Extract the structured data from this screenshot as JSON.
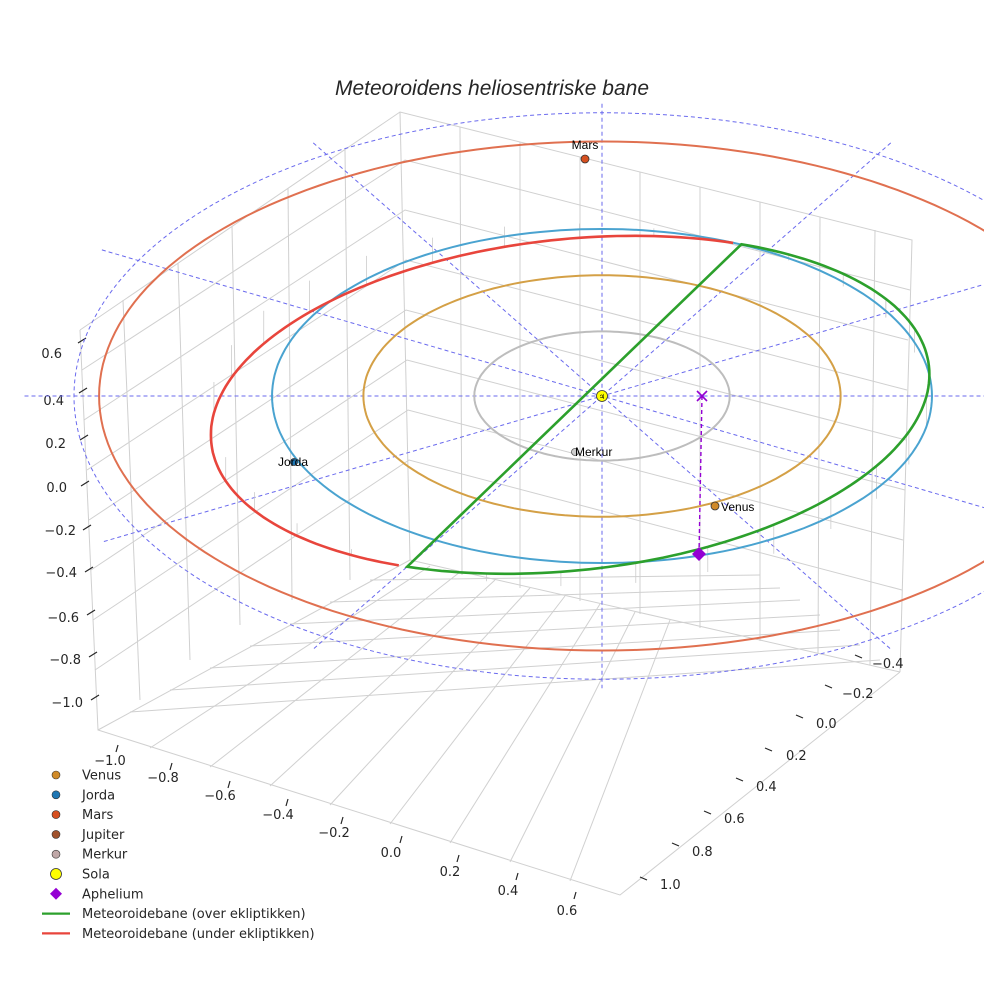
{
  "chart_data": {
    "type": "line3d",
    "title": "Meteoroidens heliosentriske bane",
    "xlabel": "",
    "ylabel": "",
    "zlabel": "",
    "x_ticks": [
      "−1.0",
      "−0.8",
      "−0.6",
      "−0.4",
      "−0.2",
      "0.0",
      "0.2",
      "0.4",
      "0.6"
    ],
    "y_ticks": [
      "−0.4",
      "−0.2",
      "0.0",
      "0.2",
      "0.4",
      "0.6",
      "0.8",
      "1.0"
    ],
    "z_ticks": [
      "0.6",
      "0.4",
      "0.2",
      "0.0",
      "−0.2",
      "−0.4",
      "−0.6",
      "−0.8",
      "−1.0"
    ],
    "grid": true,
    "legend_position": "bottom-left",
    "orbits": [
      {
        "body": "Merkur",
        "a": 0.387,
        "color": "#bdbdbd"
      },
      {
        "body": "Venus",
        "a": 0.723,
        "color": "#d4a046"
      },
      {
        "body": "Jorda",
        "a": 1.0,
        "color": "#4aa3d0"
      },
      {
        "body": "Mars",
        "a": 1.524,
        "color": "#e07050"
      }
    ],
    "planets": [
      {
        "name": "Merkur",
        "color": "#cfcfcf",
        "label": "Merkur"
      },
      {
        "name": "Venus",
        "color": "#d08a28",
        "label": "Venus"
      },
      {
        "name": "Jorda",
        "color": "#1f77b4",
        "label": "Jorda"
      },
      {
        "name": "Mars",
        "color": "#d65020",
        "label": "Mars"
      },
      {
        "name": "Sola",
        "color": "#ffff00",
        "label": "♃"
      }
    ],
    "meteoroid_orbit": {
      "perihelion_q": 0.98,
      "aphelion_Q": 1.2,
      "color_above": "#2ca02c",
      "color_below": "#e8453c"
    },
    "aphelion_marker_color": "#9400d3",
    "legend": [
      {
        "label": "Venus",
        "kind": "dot",
        "color": "#d08a28"
      },
      {
        "label": "Jorda",
        "kind": "dot",
        "color": "#1f77b4"
      },
      {
        "label": "Mars",
        "kind": "dot",
        "color": "#d65020"
      },
      {
        "label": "Jupiter",
        "kind": "dot",
        "color": "#a0522d"
      },
      {
        "label": "Merkur",
        "kind": "dot",
        "color": "#c0a8a8"
      },
      {
        "label": "Sola",
        "kind": "sun",
        "color": "#ffff00"
      },
      {
        "label": "Aphelium",
        "kind": "diamond",
        "color": "#9400d3"
      },
      {
        "label": "Meteoroidebane (over ekliptikken)",
        "kind": "line",
        "color": "#2ca02c"
      },
      {
        "label": "Meteoroidebane (under ekliptikken)",
        "kind": "line",
        "color": "#e8453c"
      }
    ]
  }
}
